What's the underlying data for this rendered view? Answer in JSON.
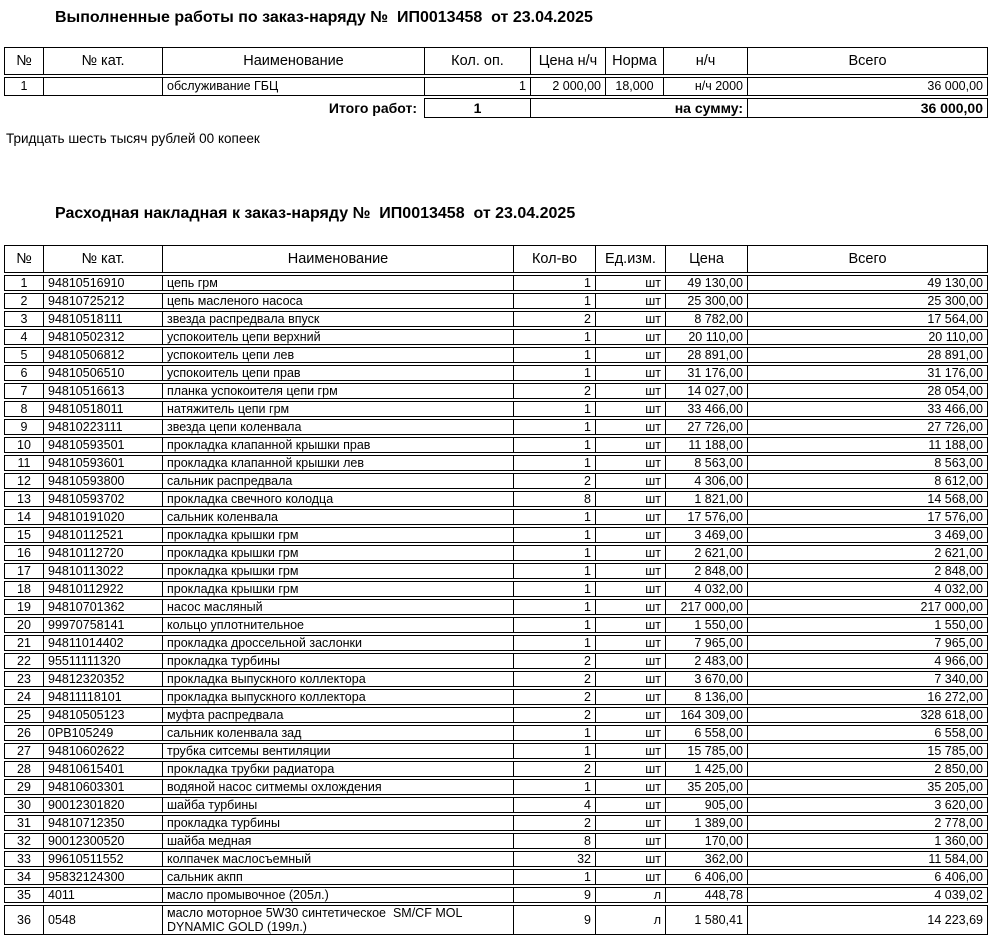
{
  "works": {
    "title": "Выполненные работы по заказ-наряду №  ИП0013458  от 23.04.2025",
    "headers": [
      "№",
      "№ кат.",
      "Наименование",
      "Кол. оп.",
      "Цена н/ч",
      "Норма",
      "н/ч",
      "Всего"
    ],
    "rows": [
      {
        "num": "1",
        "cat": "",
        "name": "обслуживание ГБЦ",
        "qty": "1",
        "price": "2 000,00",
        "norm": "18,000",
        "nh": "н/ч 2000",
        "total": "36 000,00"
      }
    ],
    "footer": {
      "label": "Итого работ:",
      "qty": "1",
      "sum_label": "на сумму:",
      "total": "36 000,00"
    },
    "amount_words": "Тридцать шесть тысяч рублей 00 копеек"
  },
  "invoice": {
    "title": "Расходная накладная к заказ-наряду №  ИП0013458  от 23.04.2025",
    "headers": [
      "№",
      "№ кат.",
      "Наименование",
      "Кол-во",
      "Ед.изм.",
      "Цена",
      "Всего"
    ],
    "rows": [
      {
        "num": "1",
        "cat": "94810516910",
        "name": "цепь грм",
        "qty": "1",
        "unit": "шт",
        "price": "49 130,00",
        "total": "49 130,00"
      },
      {
        "num": "2",
        "cat": "94810725212",
        "name": "цепь масленого насоса",
        "qty": "1",
        "unit": "шт",
        "price": "25 300,00",
        "total": "25 300,00"
      },
      {
        "num": "3",
        "cat": "94810518111",
        "name": "звезда распредвала впуск",
        "qty": "2",
        "unit": "шт",
        "price": "8 782,00",
        "total": "17 564,00"
      },
      {
        "num": "4",
        "cat": "94810502312",
        "name": "успокоитель цепи верхний",
        "qty": "1",
        "unit": "шт",
        "price": "20 110,00",
        "total": "20 110,00"
      },
      {
        "num": "5",
        "cat": "94810506812",
        "name": "успокоитель цепи лев",
        "qty": "1",
        "unit": "шт",
        "price": "28 891,00",
        "total": "28 891,00"
      },
      {
        "num": "6",
        "cat": "94810506510",
        "name": "успокоитель цепи прав",
        "qty": "1",
        "unit": "шт",
        "price": "31 176,00",
        "total": "31 176,00"
      },
      {
        "num": "7",
        "cat": "94810516613",
        "name": "планка успокоителя цепи грм",
        "qty": "2",
        "unit": "шт",
        "price": "14 027,00",
        "total": "28 054,00"
      },
      {
        "num": "8",
        "cat": "94810518011",
        "name": "натяжитель цепи грм",
        "qty": "1",
        "unit": "шт",
        "price": "33 466,00",
        "total": "33 466,00"
      },
      {
        "num": "9",
        "cat": "94810223111",
        "name": "звезда цепи коленвала",
        "qty": "1",
        "unit": "шт",
        "price": "27 726,00",
        "total": "27 726,00"
      },
      {
        "num": "10",
        "cat": "94810593501",
        "name": "прокладка клапанной крышки прав",
        "qty": "1",
        "unit": "шт",
        "price": "11 188,00",
        "total": "11 188,00"
      },
      {
        "num": "11",
        "cat": "94810593601",
        "name": "прокладка клапанной крышки лев",
        "qty": "1",
        "unit": "шт",
        "price": "8 563,00",
        "total": "8 563,00"
      },
      {
        "num": "12",
        "cat": "94810593800",
        "name": "сальник распредвала",
        "qty": "2",
        "unit": "шт",
        "price": "4 306,00",
        "total": "8 612,00"
      },
      {
        "num": "13",
        "cat": "94810593702",
        "name": "прокладка свечного колодца",
        "qty": "8",
        "unit": "шт",
        "price": "1 821,00",
        "total": "14 568,00"
      },
      {
        "num": "14",
        "cat": "94810191020",
        "name": "сальник коленвала",
        "qty": "1",
        "unit": "шт",
        "price": "17 576,00",
        "total": "17 576,00"
      },
      {
        "num": "15",
        "cat": "94810112521",
        "name": "прокладка крышки грм",
        "qty": "1",
        "unit": "шт",
        "price": "3 469,00",
        "total": "3 469,00"
      },
      {
        "num": "16",
        "cat": "94810112720",
        "name": "прокладка крышки грм",
        "qty": "1",
        "unit": "шт",
        "price": "2 621,00",
        "total": "2 621,00"
      },
      {
        "num": "17",
        "cat": "94810113022",
        "name": "прокладка крышки грм",
        "qty": "1",
        "unit": "шт",
        "price": "2 848,00",
        "total": "2 848,00"
      },
      {
        "num": "18",
        "cat": "94810112922",
        "name": "прокладка крышки грм",
        "qty": "1",
        "unit": "шт",
        "price": "4 032,00",
        "total": "4 032,00"
      },
      {
        "num": "19",
        "cat": "94810701362",
        "name": "насос масляный",
        "qty": "1",
        "unit": "шт",
        "price": "217 000,00",
        "total": "217 000,00"
      },
      {
        "num": "20",
        "cat": "99970758141",
        "name": "кольцо уплотнительное",
        "qty": "1",
        "unit": "шт",
        "price": "1 550,00",
        "total": "1 550,00"
      },
      {
        "num": "21",
        "cat": "94811014402",
        "name": "прокладка дроссельной заслонки",
        "qty": "1",
        "unit": "шт",
        "price": "7 965,00",
        "total": "7 965,00"
      },
      {
        "num": "22",
        "cat": "95511111320",
        "name": "прокладка турбины",
        "qty": "2",
        "unit": "шт",
        "price": "2 483,00",
        "total": "4 966,00"
      },
      {
        "num": "23",
        "cat": "94812320352",
        "name": "прокладка выпускного коллектора",
        "qty": "2",
        "unit": "шт",
        "price": "3 670,00",
        "total": "7 340,00"
      },
      {
        "num": "24",
        "cat": "94811118101",
        "name": "прокладка выпускного коллектора",
        "qty": "2",
        "unit": "шт",
        "price": "8 136,00",
        "total": "16 272,00"
      },
      {
        "num": "25",
        "cat": "94810505123",
        "name": "муфта распредвала",
        "qty": "2",
        "unit": "шт",
        "price": "164 309,00",
        "total": "328 618,00"
      },
      {
        "num": "26",
        "cat": "0PB105249",
        "name": "сальник коленвала зад",
        "qty": "1",
        "unit": "шт",
        "price": "6 558,00",
        "total": "6 558,00"
      },
      {
        "num": "27",
        "cat": "94810602622",
        "name": "трубка ситсемы вентиляции",
        "qty": "1",
        "unit": "шт",
        "price": "15 785,00",
        "total": "15 785,00"
      },
      {
        "num": "28",
        "cat": "94810615401",
        "name": "прокладка трубки радиатора",
        "qty": "2",
        "unit": "шт",
        "price": "1 425,00",
        "total": "2 850,00"
      },
      {
        "num": "29",
        "cat": "94810603301",
        "name": "водяной насос ситмемы охлождения",
        "qty": "1",
        "unit": "шт",
        "price": "35 205,00",
        "total": "35 205,00"
      },
      {
        "num": "30",
        "cat": "90012301820",
        "name": "шайба турбины",
        "qty": "4",
        "unit": "шт",
        "price": "905,00",
        "total": "3 620,00"
      },
      {
        "num": "31",
        "cat": "94810712350",
        "name": "прокладка турбины",
        "qty": "2",
        "unit": "шт",
        "price": "1 389,00",
        "total": "2 778,00"
      },
      {
        "num": "32",
        "cat": "90012300520",
        "name": "шайба медная",
        "qty": "8",
        "unit": "шт",
        "price": "170,00",
        "total": "1 360,00"
      },
      {
        "num": "33",
        "cat": "99610511552",
        "name": "колпачек маслосъемный",
        "qty": "32",
        "unit": "шт",
        "price": "362,00",
        "total": "11 584,00"
      },
      {
        "num": "34",
        "cat": "95832124300",
        "name": "сальник акпп",
        "qty": "1",
        "unit": "шт",
        "price": "6 406,00",
        "total": "6 406,00"
      },
      {
        "num": "35",
        "cat": "4011",
        "name": "масло промывочное (205л.)",
        "qty": "9",
        "unit": "л",
        "price": "448,78",
        "total": "4 039,02"
      },
      {
        "num": "36",
        "cat": "0548",
        "name": "масло моторное 5W30 синтетическое  SM/CF MOL DYNAMIC GOLD (199л.)",
        "qty": "9",
        "unit": "л",
        "price": "1 580,41",
        "total": "14 223,69"
      }
    ]
  }
}
